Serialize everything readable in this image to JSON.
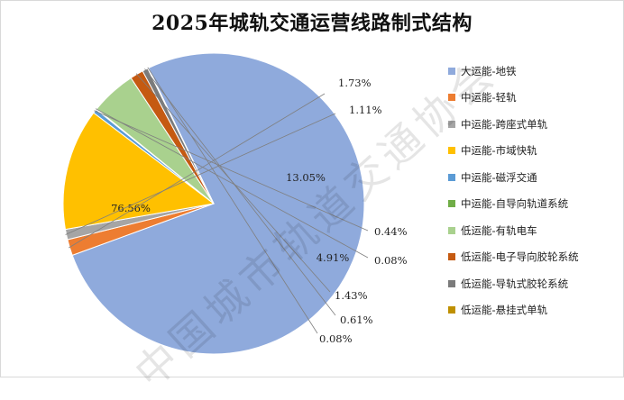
{
  "chart_data": {
    "type": "pie",
    "title": "2025年城轨交通运营线路制式结构",
    "slices": [
      {
        "label": "大运能-地铁",
        "value": 76.56,
        "display": "76.56%",
        "color": "#8faadc"
      },
      {
        "label": "中运能-轻轨",
        "value": 1.73,
        "display": "1.73%",
        "color": "#ed7d31"
      },
      {
        "label": "中运能-跨座式单轨",
        "value": 1.11,
        "display": "1.11%",
        "color": "#a5a5a5"
      },
      {
        "label": "中运能-市域快轨",
        "value": 13.05,
        "display": "13.05%",
        "color": "#ffc000"
      },
      {
        "label": "中运能-磁浮交通",
        "value": 0.44,
        "display": "0.44%",
        "color": "#5b9bd5"
      },
      {
        "label": "中运能-自导向轨道系统",
        "value": 0.08,
        "display": "0.08%",
        "color": "#70ad47"
      },
      {
        "label": "低运能-有轨电车",
        "value": 4.91,
        "display": "4.91%",
        "color": "#a9d18e"
      },
      {
        "label": "低运能-电子导向胶轮系统",
        "value": 1.43,
        "display": "1.43%",
        "color": "#c55a11"
      },
      {
        "label": "低运能-导轨式胶轮系统",
        "value": 0.61,
        "display": "0.61%",
        "color": "#7b7b7b"
      },
      {
        "label": "低运能-悬挂式单轨",
        "value": 0.08,
        "display": "0.08%",
        "color": "#bf9000"
      }
    ],
    "legend_position": "right"
  },
  "watermark": "中国城市轨道交通协会"
}
